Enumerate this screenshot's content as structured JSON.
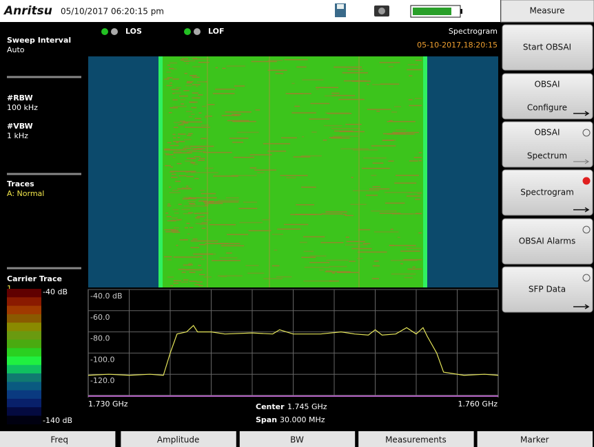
{
  "header": {
    "brand": "Anritsu",
    "datetime": "05/10/2017 06:20:15 pm"
  },
  "status": {
    "los": "LOS",
    "lof": "LOF",
    "mode": "Spectrogram",
    "timestamp": "05-10-2017,18:20:15"
  },
  "left_panel": {
    "sweep_interval": {
      "label": "Sweep Interval",
      "value": "Auto"
    },
    "rbw": {
      "label": "#RBW",
      "value": "100 kHz"
    },
    "vbw": {
      "label": "#VBW",
      "value": "1 kHz"
    },
    "traces": {
      "label": "Traces",
      "value": "A: Normal"
    },
    "carrier_trace": {
      "label": "Carrier Trace",
      "value": "1"
    }
  },
  "colorbar": {
    "top": "-40 dB",
    "bottom": "-140 dB"
  },
  "chart_data": {
    "type": "line",
    "xlim": [
      1.73,
      1.76
    ],
    "xticks": [
      {
        "value": 1.73,
        "label": "1.730 GHz"
      },
      {
        "value": 1.76,
        "label": "1.760 GHz"
      }
    ],
    "ylim": [
      -140,
      -40
    ],
    "yticks": [
      {
        "value": -40,
        "label": "-40.0 dB"
      },
      {
        "value": -60,
        "label": "-60.0"
      },
      {
        "value": -80,
        "label": "-80.0"
      },
      {
        "value": -100,
        "label": "-100.0"
      },
      {
        "value": -120,
        "label": "-120.0"
      }
    ],
    "grid": true,
    "x": [
      1.73,
      1.7315,
      1.733,
      1.7345,
      1.7355,
      1.736,
      1.7365,
      1.7372,
      1.7377,
      1.738,
      1.739,
      1.74,
      1.742,
      1.7435,
      1.744,
      1.745,
      1.747,
      1.7485,
      1.7495,
      1.7505,
      1.751,
      1.7515,
      1.7525,
      1.7533,
      1.754,
      1.7545,
      1.7548,
      1.7555,
      1.756,
      1.7575,
      1.759,
      1.76
    ],
    "series": [
      {
        "color": "#e6e65a",
        "values": [
          -121,
          -120,
          -121,
          -120,
          -121,
          -100,
          -82,
          -80,
          -74,
          -80,
          -80,
          -82,
          -81,
          -82,
          -78,
          -82,
          -82,
          -80,
          -82,
          -83,
          -78,
          -83,
          -82,
          -76,
          -82,
          -76,
          -84,
          -100,
          -118,
          -121,
          -120,
          -121
        ]
      }
    ],
    "center": {
      "label": "Center",
      "value": "1.745 GHz"
    },
    "span": {
      "label": "Span",
      "value": "30.000 MHz"
    }
  },
  "menu": {
    "title": "Measure",
    "buttons": [
      {
        "label": "Start OBSAI"
      },
      {
        "label": "OBSAI",
        "sub": "Configure"
      },
      {
        "label": "OBSAI",
        "sub": "Spectrum"
      },
      {
        "label": "Spectrogram"
      },
      {
        "label": "OBSAI Alarms"
      },
      {
        "label": "SFP Data"
      }
    ]
  },
  "bottom_menu": [
    "Freq",
    "Amplitude",
    "BW",
    "Measurements",
    "Marker"
  ]
}
